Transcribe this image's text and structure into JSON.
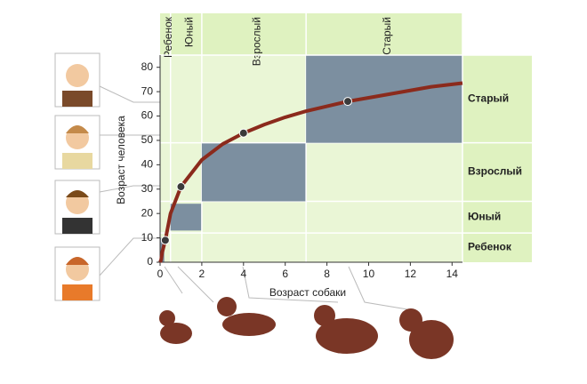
{
  "chart_data": {
    "type": "line",
    "x_label": "Возраст собаки",
    "y_label": "Возраст человека",
    "xlim": [
      0,
      14.5
    ],
    "ylim": [
      0,
      85
    ],
    "xticks": [
      0,
      2,
      4,
      6,
      8,
      10,
      12,
      14
    ],
    "yticks": [
      0,
      10,
      20,
      30,
      40,
      50,
      60,
      70,
      80
    ],
    "stages": [
      {
        "label": "Ребенок",
        "x": [
          0,
          0.5
        ],
        "y": [
          0,
          12
        ],
        "block_x": [
          0,
          0.2
        ],
        "block_y": [
          0,
          10
        ]
      },
      {
        "label": "Юный",
        "x": [
          0.5,
          2
        ],
        "y": [
          12,
          25
        ],
        "block_x": [
          0.5,
          2
        ],
        "block_y": [
          13,
          24
        ]
      },
      {
        "label": "Взрослый",
        "x": [
          2,
          7
        ],
        "y": [
          25,
          49
        ],
        "block_x": [
          2,
          7
        ],
        "block_y": [
          25,
          49
        ]
      },
      {
        "label": "Старый",
        "x": [
          7,
          14.5
        ],
        "y": [
          49,
          85
        ],
        "block_x": [
          7,
          14.5
        ],
        "block_y": [
          49,
          85
        ]
      }
    ],
    "series": [
      {
        "color": "#8b2a1c",
        "x": [
          0,
          0.05,
          0.1,
          0.25,
          0.5,
          1,
          2,
          3,
          4,
          5,
          6,
          7,
          8,
          9,
          10,
          11,
          12,
          13,
          14,
          14.5
        ],
        "values": [
          0,
          1,
          4,
          9,
          20,
          31,
          42,
          48.5,
          53,
          56.5,
          59.5,
          62,
          64,
          66,
          67.5,
          69,
          70.5,
          72,
          73,
          73.5
        ]
      },
      {
        "color": "#3a3a3a",
        "markers": true,
        "x": [
          0.25,
          1,
          4,
          9
        ],
        "values": [
          9,
          31,
          53,
          66
        ]
      }
    ]
  }
}
